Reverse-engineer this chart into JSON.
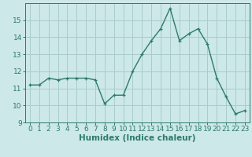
{
  "x": [
    0,
    1,
    2,
    3,
    4,
    5,
    6,
    7,
    8,
    9,
    10,
    11,
    12,
    13,
    14,
    15,
    16,
    17,
    18,
    19,
    20,
    21,
    22,
    23
  ],
  "y": [
    11.2,
    11.2,
    11.6,
    11.5,
    11.6,
    11.6,
    11.6,
    11.5,
    10.1,
    10.6,
    10.6,
    12.0,
    13.0,
    13.8,
    14.5,
    15.7,
    13.8,
    14.2,
    14.5,
    13.6,
    11.6,
    10.5,
    9.5,
    9.7
  ],
  "xlabel": "Humidex (Indice chaleur)",
  "ylim": [
    9,
    16
  ],
  "yticks": [
    9,
    10,
    11,
    12,
    13,
    14,
    15
  ],
  "xticks": [
    0,
    1,
    2,
    3,
    4,
    5,
    6,
    7,
    8,
    9,
    10,
    11,
    12,
    13,
    14,
    15,
    16,
    17,
    18,
    19,
    20,
    21,
    22,
    23
  ],
  "line_color": "#2d7a6e",
  "marker": "+",
  "bg_color": "#cce8e8",
  "grid_color": "#aacccc",
  "tick_color": "#2d7a6e",
  "label_color": "#2d7a6e",
  "xlabel_fontsize": 7.5,
  "tick_fontsize": 6.5
}
